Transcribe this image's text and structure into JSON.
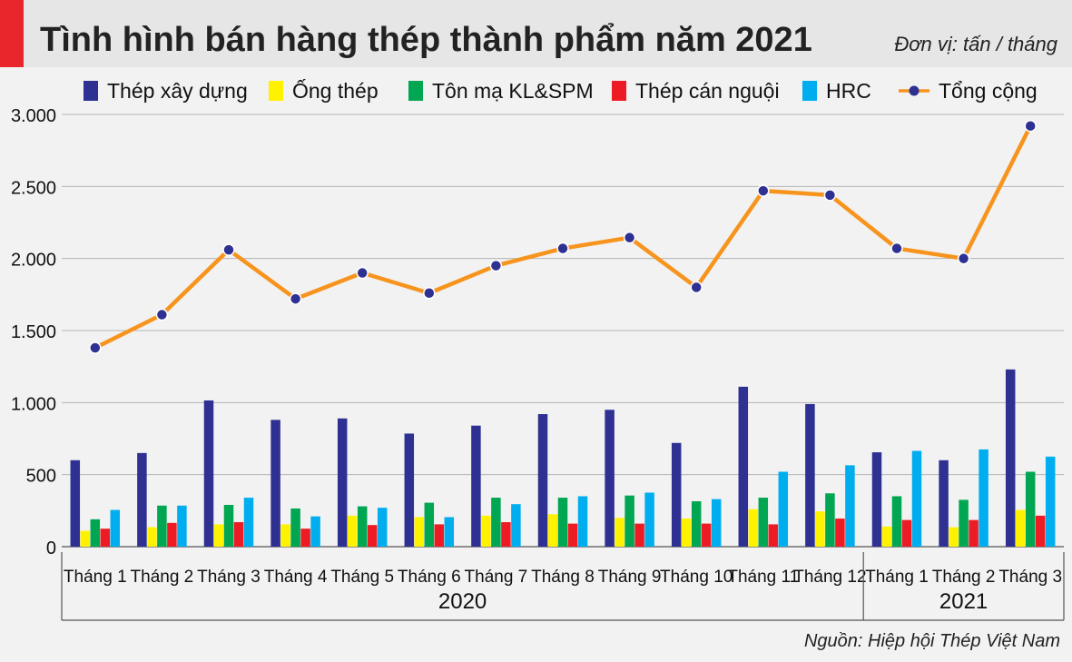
{
  "header": {
    "title": "Tình hình bán hàng thép thành phẩm năm 2021",
    "unit": "Đơn vị: tấn / tháng",
    "accent_color": "#e8262b"
  },
  "footer": {
    "source": "Nguồn: Hiệp hội Thép Việt Nam"
  },
  "chart_data": {
    "type": "bar",
    "categories": [
      "Tháng 1",
      "Tháng 2",
      "Tháng 3",
      "Tháng 4",
      "Tháng 5",
      "Tháng 6",
      "Tháng 7",
      "Tháng 8",
      "Tháng 9",
      "Tháng 10",
      "Tháng 11",
      "Tháng 12",
      "Tháng 1",
      "Tháng 2",
      "Tháng 3"
    ],
    "groups": [
      {
        "label": "2020",
        "count": 12
      },
      {
        "label": "2021",
        "count": 3
      }
    ],
    "ylim": [
      0,
      3000
    ],
    "yticks": [
      0,
      500,
      1000,
      1500,
      2000,
      2500,
      3000
    ],
    "ytick_labels": [
      "0",
      "500",
      "1.000",
      "1.500",
      "2.000",
      "2.500",
      "3.000"
    ],
    "grid": true,
    "legend": "top",
    "series": [
      {
        "name": "Thép xây dựng",
        "type": "bar",
        "color": "#2e3192",
        "values": [
          600,
          650,
          1015,
          880,
          890,
          785,
          840,
          920,
          950,
          720,
          1110,
          990,
          655,
          600,
          1230
        ]
      },
      {
        "name": "Ống thép",
        "type": "bar",
        "color": "#fff200",
        "values": [
          110,
          135,
          155,
          155,
          215,
          205,
          215,
          225,
          200,
          195,
          260,
          245,
          140,
          135,
          255
        ]
      },
      {
        "name": "Tôn mạ KL&SPM",
        "type": "bar",
        "color": "#00a651",
        "values": [
          190,
          285,
          290,
          265,
          280,
          305,
          340,
          340,
          355,
          315,
          340,
          370,
          350,
          325,
          520
        ]
      },
      {
        "name": "Thép cán nguội",
        "type": "bar",
        "color": "#ed1c24",
        "values": [
          125,
          165,
          170,
          125,
          150,
          155,
          170,
          160,
          160,
          160,
          155,
          195,
          185,
          185,
          215
        ]
      },
      {
        "name": "HRC",
        "type": "bar",
        "color": "#00aeef",
        "values": [
          255,
          285,
          340,
          210,
          270,
          205,
          295,
          350,
          375,
          330,
          520,
          565,
          665,
          675,
          625
        ]
      },
      {
        "name": "Tổng cộng",
        "type": "line",
        "color": "#f7941d",
        "marker_color": "#2e3192",
        "values": [
          1380,
          1610,
          2060,
          1720,
          1900,
          1760,
          1950,
          2070,
          2145,
          1800,
          2470,
          2440,
          2070,
          2000,
          2920
        ]
      }
    ]
  }
}
